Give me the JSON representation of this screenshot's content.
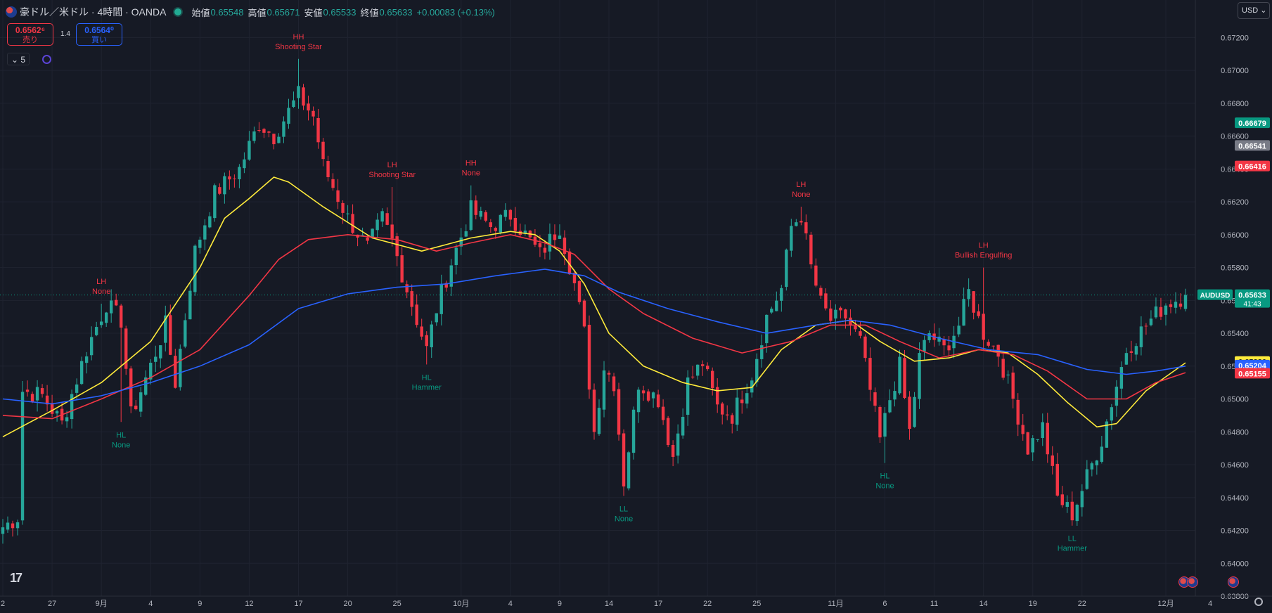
{
  "header": {
    "title": "豪ドル／米ドル · 4時間 · OANDA",
    "open_label": "始値",
    "open": "0.65548",
    "high_label": "高値",
    "high": "0.65671",
    "low_label": "安値",
    "low": "0.65533",
    "close_label": "終値",
    "close": "0.65633",
    "change": "+0.00083 (+0.13%)"
  },
  "trade": {
    "sell_price": "0.6562⁶",
    "sell_label": "売り",
    "buy_price": "0.6564⁰",
    "buy_label": "買い",
    "spread": "1.4"
  },
  "interval_selector": "5",
  "currency": "USD",
  "colors": {
    "background": "#161a25",
    "up": "#26a69a",
    "down": "#f23645",
    "ma_fast": "#ffeb3b",
    "ma_mid": "#f23645",
    "ma_slow": "#2962ff"
  },
  "chart_data": {
    "type": "candlestick",
    "symbol": "AUDUSD",
    "timeframe": "4H",
    "ylim": [
      0.638,
      0.673
    ],
    "y_ticks": [
      "0.67200",
      "0.67000",
      "0.66800",
      "0.66600",
      "0.66400",
      "0.66200",
      "0.66000",
      "0.65800",
      "0.65600",
      "0.65400",
      "0.65200",
      "0.65000",
      "0.64800",
      "0.64600",
      "0.64400",
      "0.64200",
      "0.64000",
      "0.63800"
    ],
    "x_ticks": [
      {
        "label": "2",
        "i": 0
      },
      {
        "label": "27",
        "i": 10
      },
      {
        "label": "9月",
        "i": 20
      },
      {
        "label": "4",
        "i": 30
      },
      {
        "label": "9",
        "i": 40
      },
      {
        "label": "12",
        "i": 50
      },
      {
        "label": "17",
        "i": 60
      },
      {
        "label": "20",
        "i": 70
      },
      {
        "label": "25",
        "i": 80
      },
      {
        "label": "10月",
        "i": 93
      },
      {
        "label": "4",
        "i": 103
      },
      {
        "label": "9",
        "i": 113
      },
      {
        "label": "14",
        "i": 123
      },
      {
        "label": "17",
        "i": 133
      },
      {
        "label": "22",
        "i": 143
      },
      {
        "label": "25",
        "i": 153
      },
      {
        "label": "11月",
        "i": 169
      },
      {
        "label": "6",
        "i": 179
      },
      {
        "label": "11",
        "i": 189
      },
      {
        "label": "14",
        "i": 199
      },
      {
        "label": "19",
        "i": 209
      },
      {
        "label": "22",
        "i": 219
      },
      {
        "label": "12月",
        "i": 236
      },
      {
        "label": "4",
        "i": 245
      }
    ],
    "candle_count": 241,
    "anchors": [
      [
        0,
        0.6422
      ],
      [
        3,
        0.6428
      ],
      [
        4,
        0.6505
      ],
      [
        8,
        0.6502
      ],
      [
        12,
        0.6485
      ],
      [
        17,
        0.653
      ],
      [
        21,
        0.6558
      ],
      [
        24,
        0.6548
      ],
      [
        26,
        0.649
      ],
      [
        30,
        0.652
      ],
      [
        33,
        0.6545
      ],
      [
        35,
        0.651
      ],
      [
        39,
        0.659
      ],
      [
        43,
        0.6625
      ],
      [
        48,
        0.664
      ],
      [
        52,
        0.6668
      ],
      [
        55,
        0.666
      ],
      [
        60,
        0.6685
      ],
      [
        63,
        0.6672
      ],
      [
        65,
        0.6642
      ],
      [
        70,
        0.661
      ],
      [
        74,
        0.6592
      ],
      [
        77,
        0.661
      ],
      [
        79,
        0.6596
      ],
      [
        82,
        0.6567
      ],
      [
        86,
        0.653
      ],
      [
        88,
        0.6555
      ],
      [
        91,
        0.6583
      ],
      [
        95,
        0.6615
      ],
      [
        99,
        0.6605
      ],
      [
        103,
        0.6612
      ],
      [
        106,
        0.66
      ],
      [
        109,
        0.6588
      ],
      [
        113,
        0.6605
      ],
      [
        116,
        0.657
      ],
      [
        118,
        0.654
      ],
      [
        120,
        0.648
      ],
      [
        122,
        0.652
      ],
      [
        124,
        0.651
      ],
      [
        126,
        0.645
      ],
      [
        129,
        0.651
      ],
      [
        133,
        0.65
      ],
      [
        136,
        0.6465
      ],
      [
        139,
        0.651
      ],
      [
        142,
        0.6522
      ],
      [
        145,
        0.6495
      ],
      [
        148,
        0.649
      ],
      [
        152,
        0.6515
      ],
      [
        155,
        0.655
      ],
      [
        158,
        0.6567
      ],
      [
        160,
        0.6605
      ],
      [
        162,
        0.6612
      ],
      [
        164,
        0.658
      ],
      [
        166,
        0.6558
      ],
      [
        168,
        0.6548
      ],
      [
        171,
        0.655
      ],
      [
        174,
        0.6535
      ],
      [
        176,
        0.6505
      ],
      [
        178,
        0.6475
      ],
      [
        180,
        0.65
      ],
      [
        182,
        0.652
      ],
      [
        184,
        0.648
      ],
      [
        186,
        0.6525
      ],
      [
        188,
        0.654
      ],
      [
        191,
        0.653
      ],
      [
        194,
        0.6545
      ],
      [
        196,
        0.6565
      ],
      [
        199,
        0.654
      ],
      [
        202,
        0.6528
      ],
      [
        205,
        0.65
      ],
      [
        208,
        0.647
      ],
      [
        211,
        0.6483
      ],
      [
        214,
        0.644
      ],
      [
        217,
        0.643
      ],
      [
        219,
        0.6445
      ],
      [
        221,
        0.646
      ],
      [
        223,
        0.6475
      ],
      [
        225,
        0.6498
      ],
      [
        228,
        0.653
      ],
      [
        232,
        0.6545
      ],
      [
        236,
        0.6558
      ],
      [
        240,
        0.6563
      ]
    ],
    "moving_averages": [
      {
        "color": "#ffeb3b",
        "points": [
          [
            0,
            0.6477
          ],
          [
            5,
            0.6485
          ],
          [
            10,
            0.6493
          ],
          [
            20,
            0.651
          ],
          [
            30,
            0.6535
          ],
          [
            40,
            0.658
          ],
          [
            45,
            0.661
          ],
          [
            50,
            0.6622
          ],
          [
            55,
            0.6635
          ],
          [
            58,
            0.6632
          ],
          [
            65,
            0.6617
          ],
          [
            75,
            0.6598
          ],
          [
            85,
            0.659
          ],
          [
            95,
            0.6598
          ],
          [
            103,
            0.6602
          ],
          [
            108,
            0.66
          ],
          [
            113,
            0.659
          ],
          [
            118,
            0.657
          ],
          [
            123,
            0.654
          ],
          [
            130,
            0.652
          ],
          [
            138,
            0.651
          ],
          [
            145,
            0.6505
          ],
          [
            152,
            0.6507
          ],
          [
            158,
            0.653
          ],
          [
            165,
            0.6545
          ],
          [
            172,
            0.6548
          ],
          [
            178,
            0.6535
          ],
          [
            185,
            0.6523
          ],
          [
            192,
            0.6525
          ],
          [
            198,
            0.653
          ],
          [
            204,
            0.6528
          ],
          [
            210,
            0.6515
          ],
          [
            216,
            0.6498
          ],
          [
            222,
            0.6483
          ],
          [
            226,
            0.6485
          ],
          [
            232,
            0.6505
          ],
          [
            240,
            0.6522
          ]
        ]
      },
      {
        "color": "#f23645",
        "points": [
          [
            0,
            0.649
          ],
          [
            10,
            0.6488
          ],
          [
            20,
            0.65
          ],
          [
            30,
            0.6513
          ],
          [
            40,
            0.653
          ],
          [
            50,
            0.6563
          ],
          [
            56,
            0.6585
          ],
          [
            62,
            0.6597
          ],
          [
            70,
            0.66
          ],
          [
            80,
            0.6597
          ],
          [
            88,
            0.659
          ],
          [
            95,
            0.6595
          ],
          [
            103,
            0.66
          ],
          [
            110,
            0.6595
          ],
          [
            116,
            0.6588
          ],
          [
            123,
            0.6567
          ],
          [
            130,
            0.6552
          ],
          [
            140,
            0.6537
          ],
          [
            150,
            0.6528
          ],
          [
            160,
            0.6535
          ],
          [
            168,
            0.6545
          ],
          [
            175,
            0.6545
          ],
          [
            182,
            0.6535
          ],
          [
            190,
            0.6525
          ],
          [
            198,
            0.653
          ],
          [
            205,
            0.6527
          ],
          [
            212,
            0.6517
          ],
          [
            220,
            0.65
          ],
          [
            228,
            0.65
          ],
          [
            234,
            0.651
          ],
          [
            240,
            0.6516
          ]
        ]
      },
      {
        "color": "#2962ff",
        "points": [
          [
            0,
            0.65
          ],
          [
            10,
            0.6497
          ],
          [
            20,
            0.6502
          ],
          [
            30,
            0.651
          ],
          [
            40,
            0.652
          ],
          [
            50,
            0.6533
          ],
          [
            60,
            0.6555
          ],
          [
            70,
            0.6564
          ],
          [
            80,
            0.6568
          ],
          [
            90,
            0.657
          ],
          [
            100,
            0.6575
          ],
          [
            110,
            0.6579
          ],
          [
            118,
            0.6575
          ],
          [
            125,
            0.6565
          ],
          [
            135,
            0.6555
          ],
          [
            145,
            0.6547
          ],
          [
            155,
            0.654
          ],
          [
            165,
            0.6545
          ],
          [
            172,
            0.6548
          ],
          [
            180,
            0.6545
          ],
          [
            190,
            0.6537
          ],
          [
            200,
            0.653
          ],
          [
            210,
            0.6527
          ],
          [
            220,
            0.6518
          ],
          [
            228,
            0.6515
          ],
          [
            234,
            0.6517
          ],
          [
            240,
            0.652
          ]
        ]
      }
    ],
    "annotations": [
      {
        "i": 20,
        "price": 0.6558,
        "kind": "high",
        "line1": "LH",
        "line2": "None"
      },
      {
        "i": 24,
        "price": 0.6486,
        "kind": "low",
        "line1": "HL",
        "line2": "None"
      },
      {
        "i": 60,
        "price": 0.6707,
        "kind": "high",
        "line1": "HH",
        "line2": "Shooting Star"
      },
      {
        "i": 79,
        "price": 0.6629,
        "kind": "high",
        "line1": "LH",
        "line2": "Shooting Star"
      },
      {
        "i": 86,
        "price": 0.6521,
        "kind": "low",
        "line1": "HL",
        "line2": "Hammer"
      },
      {
        "i": 95,
        "price": 0.663,
        "kind": "high",
        "line1": "HH",
        "line2": "None"
      },
      {
        "i": 126,
        "price": 0.6441,
        "kind": "low",
        "line1": "LL",
        "line2": "None"
      },
      {
        "i": 162,
        "price": 0.6617,
        "kind": "high",
        "line1": "LH",
        "line2": "None"
      },
      {
        "i": 179,
        "price": 0.6461,
        "kind": "low",
        "line1": "HL",
        "line2": "None"
      },
      {
        "i": 199,
        "price": 0.658,
        "kind": "high",
        "line1": "LH",
        "line2": "Bullish Engulfing"
      },
      {
        "i": 217,
        "price": 0.6423,
        "kind": "low",
        "line1": "LL",
        "line2": "Hammer"
      }
    ],
    "price_labels": [
      {
        "price": 0.66679,
        "text": "0.66679",
        "bg": "#089981"
      },
      {
        "price": 0.66541,
        "text": "0.66541",
        "bg": "#787b86"
      },
      {
        "price": 0.66416,
        "text": "0.66416",
        "bg": "#f23645"
      },
      {
        "price": 0.65633,
        "text": "0.65633",
        "sub": "41:43",
        "bg": "#089981",
        "tag": "AUDUSD"
      },
      {
        "price": 0.65226,
        "text": "0.65226",
        "bg": "#ffeb3b",
        "fg": "#131722"
      },
      {
        "price": 0.65204,
        "text": "0.65204",
        "bg": "#2962ff"
      },
      {
        "price": 0.65155,
        "text": "0.65155",
        "bg": "#f23645"
      }
    ],
    "current_price": 0.65633
  }
}
